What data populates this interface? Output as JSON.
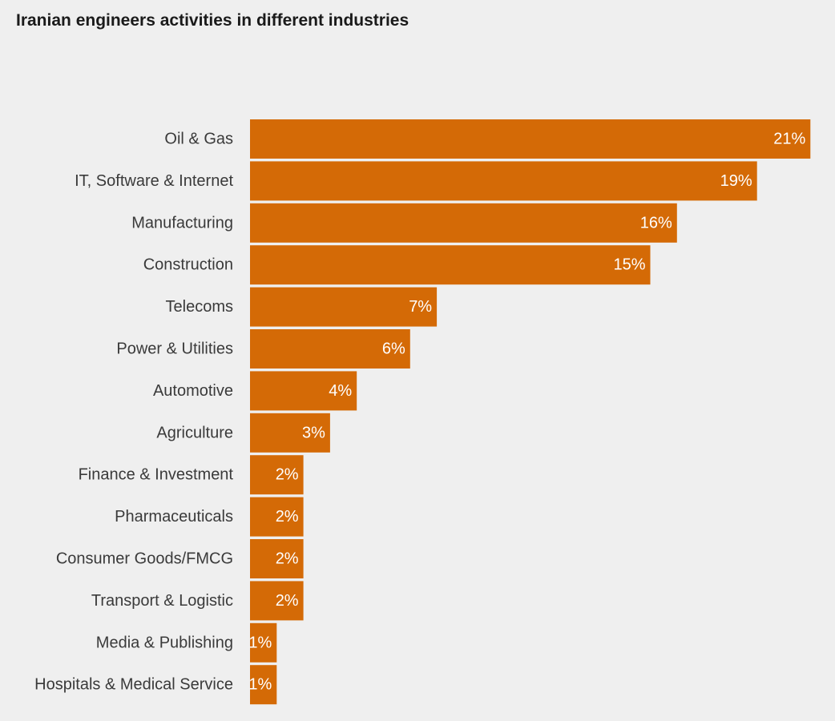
{
  "chart_data": {
    "type": "bar",
    "orientation": "horizontal",
    "title": "Iranian engineers activities in different industries",
    "categories": [
      "Oil & Gas",
      "IT, Software & Internet",
      "Manufacturing",
      "Construction",
      "Telecoms",
      "Power & Utilities",
      "Automotive",
      "Agriculture",
      "Finance & Investment",
      "Pharmaceuticals",
      "Consumer Goods/FMCG",
      "Transport & Logistic",
      "Media & Publishing",
      "Hospitals & Medical Service"
    ],
    "values": [
      21,
      19,
      16,
      15,
      7,
      6,
      4,
      3,
      2,
      2,
      2,
      2,
      1,
      1
    ],
    "value_labels": [
      "21%",
      "19%",
      "16%",
      "15%",
      "7%",
      "6%",
      "4%",
      "3%",
      "2%",
      "2%",
      "2%",
      "2%",
      "1%",
      "1%"
    ],
    "bar_color": "#d46a06",
    "xlabel": "",
    "ylabel": "",
    "xlim": [
      0,
      21
    ],
    "grid": false,
    "legend": "none"
  }
}
